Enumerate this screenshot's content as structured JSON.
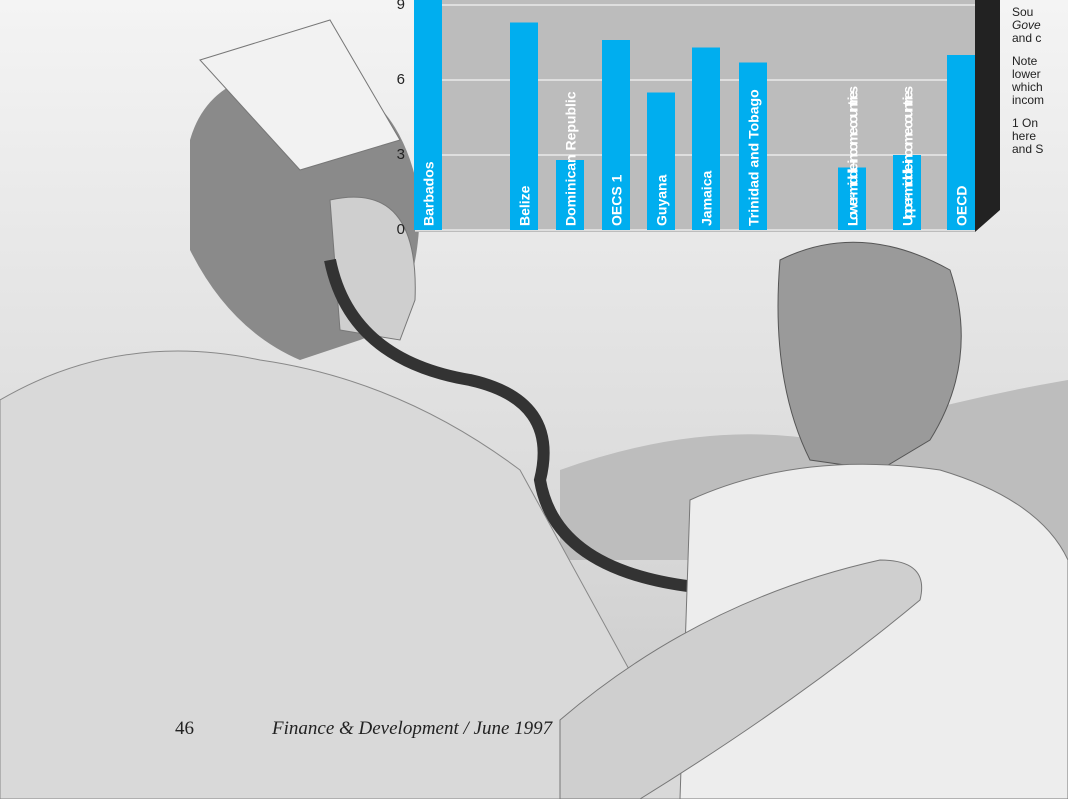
{
  "chart_data": {
    "type": "bar",
    "categories": [
      "Barbados",
      "Belize",
      "Dominican  Republic",
      "OECS 1",
      "Guyana",
      "Jamaica",
      "Trinidad and Tobago",
      "Lower-middle-income countries",
      "Upper-middle-income countries",
      "OECD"
    ],
    "values": [
      9.5,
      8.3,
      2.8,
      7.6,
      5.5,
      7.3,
      6.7,
      2.5,
      3.0,
      7.0
    ],
    "color": "#00aeef",
    "ylim": [
      0,
      9.3
    ],
    "yticks": [
      0,
      3,
      6,
      9
    ],
    "grid": true
  },
  "side_text": [
    "Sou",
    "Gove",
    "and c",
    "Note",
    "lower",
    "which",
    "incom",
    "1 On",
    "here",
    "and S"
  ],
  "footer": {
    "page": "46",
    "publication": "Finance & Development / June 1997"
  }
}
